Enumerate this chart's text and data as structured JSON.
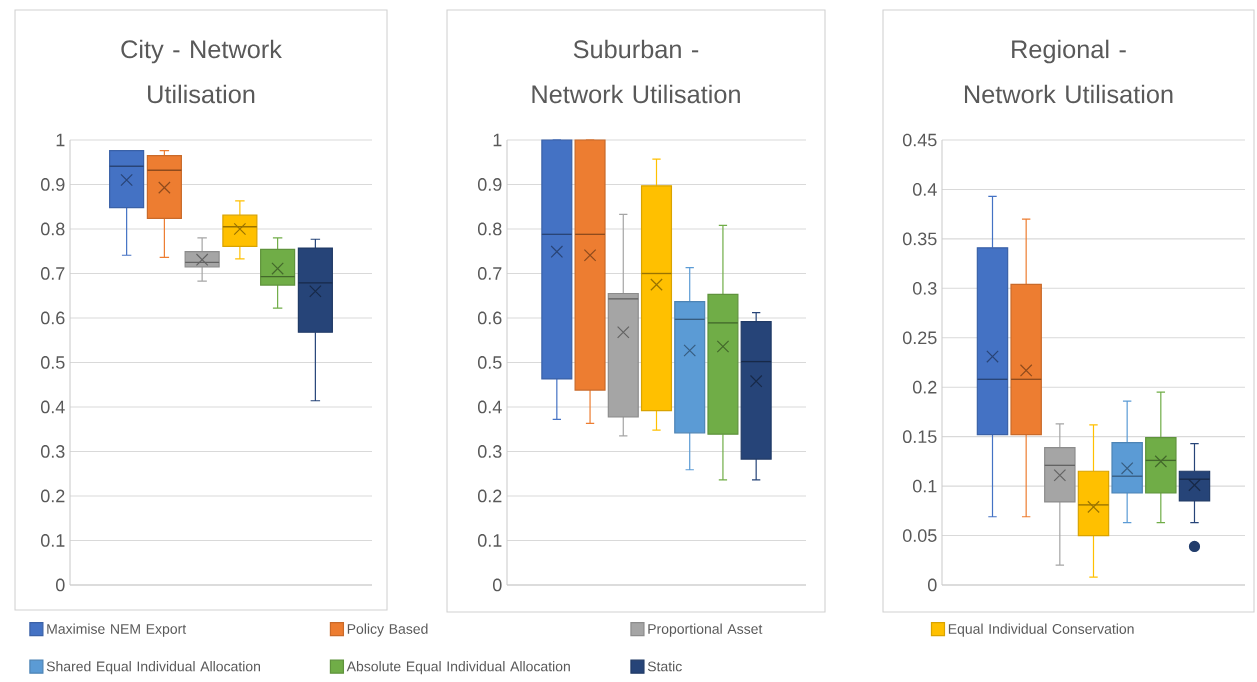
{
  "chart_data": [
    {
      "type": "box",
      "title": "City - Network Utilisation",
      "categories": [
        null
      ],
      "ylim": [
        0,
        1
      ],
      "yticks": [
        0,
        0.1,
        0.2,
        0.3,
        0.4,
        0.5,
        0.6,
        0.7,
        0.8,
        0.9,
        1
      ],
      "grid": "y",
      "series": [
        {
          "color": "#4472c4",
          "boxes": [
            {
              "low": 0.741,
              "q1": 0.848,
              "median": 0.941,
              "q3": 0.976,
              "high": 0.976,
              "mean": 0.91
            }
          ]
        },
        {
          "color": "#ed7d31",
          "boxes": [
            {
              "low": 0.736,
              "q1": 0.824,
              "median": 0.932,
              "q3": 0.965,
              "high": 0.976,
              "mean": 0.893
            }
          ]
        },
        {
          "color": "#a5a5a5",
          "boxes": [
            {
              "low": 0.683,
              "q1": 0.715,
              "median": 0.725,
              "q3": 0.749,
              "high": 0.78,
              "mean": 0.731
            }
          ]
        },
        {
          "color": "#ffc000",
          "boxes": [
            {
              "low": 0.733,
              "q1": 0.761,
              "median": 0.805,
              "q3": 0.831,
              "high": 0.863,
              "mean": 0.8
            }
          ]
        },
        {
          "color": "#70ad47",
          "boxes": [
            {
              "low": 0.622,
              "q1": 0.674,
              "median": 0.693,
              "q3": 0.754,
              "high": 0.78,
              "mean": 0.711
            }
          ]
        },
        {
          "color": "#264478",
          "boxes": [
            {
              "low": 0.414,
              "q1": 0.568,
              "median": 0.679,
              "q3": 0.757,
              "high": 0.777,
              "mean": 0.66
            }
          ]
        }
      ]
    },
    {
      "type": "box",
      "title": "Suburban - Network Utilisation",
      "categories": [
        null
      ],
      "ylim": [
        0,
        1
      ],
      "yticks": [
        0,
        0.1,
        0.2,
        0.3,
        0.4,
        0.5,
        0.6,
        0.7,
        0.8,
        0.9,
        1
      ],
      "grid": "y",
      "legend": "bottom",
      "series": [
        {
          "name": "Maximise NEM Export",
          "color": "#4472c4",
          "boxes": [
            {
              "low": 0.372,
              "q1": 0.463,
              "median": 0.788,
              "q3": 1.0,
              "high": 1.0,
              "mean": 0.749
            }
          ]
        },
        {
          "name": "Policy Based",
          "color": "#ed7d31",
          "boxes": [
            {
              "low": 0.363,
              "q1": 0.438,
              "median": 0.788,
              "q3": 1.0,
              "high": 1.0,
              "mean": 0.741
            }
          ]
        },
        {
          "name": "Proportional Asset",
          "color": "#a5a5a5",
          "boxes": [
            {
              "low": 0.335,
              "q1": 0.378,
              "median": 0.643,
              "q3": 0.655,
              "high": 0.833,
              "mean": 0.568
            }
          ]
        },
        {
          "name": "Equal Individual Conservation",
          "color": "#ffc000",
          "boxes": [
            {
              "low": 0.348,
              "q1": 0.392,
              "median": 0.7,
              "q3": 0.897,
              "high": 0.957,
              "mean": 0.675
            }
          ]
        },
        {
          "name": "Shared Equal Individual Allocation",
          "color": "#5b9bd5",
          "boxes": [
            {
              "low": 0.259,
              "q1": 0.342,
              "median": 0.597,
              "q3": 0.637,
              "high": 0.713,
              "mean": 0.527
            }
          ]
        },
        {
          "name": "Absolute Equal Individual Allocation",
          "color": "#70ad47",
          "boxes": [
            {
              "low": 0.236,
              "q1": 0.339,
              "median": 0.589,
              "q3": 0.653,
              "high": 0.808,
              "mean": 0.536
            }
          ]
        },
        {
          "name": "Static",
          "color": "#264478",
          "boxes": [
            {
              "low": 0.236,
              "q1": 0.283,
              "median": 0.502,
              "q3": 0.592,
              "high": 0.612,
              "mean": 0.458
            }
          ]
        }
      ]
    },
    {
      "type": "box",
      "title": "Regional - Network Utilisation",
      "categories": [
        null
      ],
      "ylim": [
        0,
        0.45
      ],
      "yticks": [
        0,
        0.05,
        0.1,
        0.15,
        0.2,
        0.25,
        0.3,
        0.35,
        0.4,
        0.45
      ],
      "grid": "y",
      "series": [
        {
          "color": "#4472c4",
          "boxes": [
            {
              "low": 0.069,
              "q1": 0.152,
              "median": 0.208,
              "q3": 0.341,
              "high": 0.393,
              "mean": 0.231
            }
          ]
        },
        {
          "color": "#ed7d31",
          "boxes": [
            {
              "low": 0.069,
              "q1": 0.152,
              "median": 0.208,
              "q3": 0.304,
              "high": 0.37,
              "mean": 0.217
            }
          ]
        },
        {
          "color": "#a5a5a5",
          "boxes": [
            {
              "low": 0.02,
              "q1": 0.084,
              "median": 0.121,
              "q3": 0.139,
              "high": 0.163,
              "mean": 0.111
            }
          ]
        },
        {
          "color": "#ffc000",
          "boxes": [
            {
              "low": 0.008,
              "q1": 0.05,
              "median": 0.081,
              "q3": 0.115,
              "high": 0.162,
              "mean": 0.079
            }
          ]
        },
        {
          "color": "#5b9bd5",
          "boxes": [
            {
              "low": 0.063,
              "q1": 0.093,
              "median": 0.11,
              "q3": 0.144,
              "high": 0.186,
              "mean": 0.118
            }
          ]
        },
        {
          "color": "#70ad47",
          "boxes": [
            {
              "low": 0.063,
              "q1": 0.093,
              "median": 0.126,
              "q3": 0.149,
              "high": 0.195,
              "mean": 0.125
            }
          ]
        },
        {
          "color": "#264478",
          "boxes": [
            {
              "low": 0.063,
              "q1": 0.085,
              "median": 0.107,
              "q3": 0.115,
              "high": 0.143,
              "mean": 0.101,
              "outliers": [
                0.039
              ]
            }
          ]
        }
      ]
    }
  ]
}
